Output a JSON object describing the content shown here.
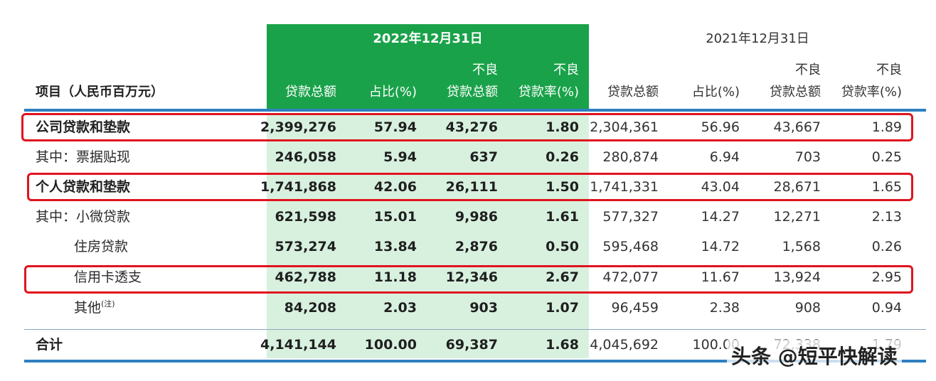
{
  "header": {
    "item_label": "项目（人民币百万元）",
    "period_2022": "2022年12月31日",
    "period_2021": "2021年12月31日",
    "col_loan_total": "贷款总额",
    "col_share": "占比(%)",
    "col_npl_top": "不良",
    "col_npl_bottom": "贷款总额",
    "col_nplr_top": "不良",
    "col_nplr_bottom": "贷款率(%)"
  },
  "rows": [
    {
      "label": "公司贷款和垫款",
      "bold": true,
      "v2022": [
        "2,399,276",
        "57.94",
        "43,276",
        "1.80"
      ],
      "v2021": [
        "2,304,361",
        "56.96",
        "43,667",
        "1.89"
      ]
    },
    {
      "label": "其中：票据贴现",
      "bold": false,
      "v2022": [
        "246,058",
        "5.94",
        "637",
        "0.26"
      ],
      "v2021": [
        "280,874",
        "6.94",
        "703",
        "0.25"
      ]
    },
    {
      "label": "个人贷款和垫款",
      "bold": true,
      "v2022": [
        "1,741,868",
        "42.06",
        "26,111",
        "1.50"
      ],
      "v2021": [
        "1,741,331",
        "43.04",
        "28,671",
        "1.65"
      ]
    },
    {
      "label": "其中：小微贷款",
      "bold": false,
      "v2022": [
        "621,598",
        "15.01",
        "9,986",
        "1.61"
      ],
      "v2021": [
        "577,327",
        "14.27",
        "12,271",
        "2.13"
      ]
    },
    {
      "label": "住房贷款",
      "bold": false,
      "v2022": [
        "573,274",
        "13.84",
        "2,876",
        "0.50"
      ],
      "v2021": [
        "595,468",
        "14.72",
        "1,568",
        "0.26"
      ]
    },
    {
      "label": "信用卡透支",
      "bold": false,
      "v2022": [
        "462,788",
        "11.18",
        "12,346",
        "2.67"
      ],
      "v2021": [
        "472,077",
        "11.67",
        "13,924",
        "2.95"
      ]
    },
    {
      "label": "其他",
      "sup": "(注)",
      "bold": false,
      "v2022": [
        "84,208",
        "2.03",
        "903",
        "1.07"
      ],
      "v2021": [
        "96,459",
        "2.38",
        "908",
        "0.94"
      ]
    }
  ],
  "total": {
    "label": "合计",
    "v2022": [
      "4,141,144",
      "100.00",
      "69,387",
      "1.68"
    ],
    "v2021": [
      "4,045,692",
      "100.00",
      "72,338",
      "1.79"
    ]
  },
  "watermark": "头条 @短平快解读",
  "colors": {
    "green_header": "#1aa24a",
    "green_body": "#d8f1df",
    "rule_blue": "#2f7fc1",
    "highlight_red": "#e0141e"
  }
}
